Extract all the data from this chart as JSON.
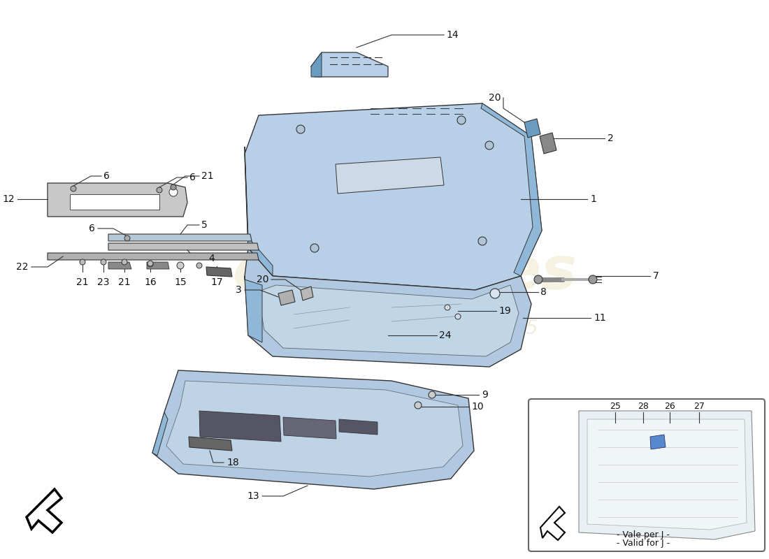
{
  "background_color": "#ffffff",
  "part_color_light": "#b8cfe8",
  "part_color_medium": "#8fb8d8",
  "part_color_dark": "#6a9cbf",
  "line_color": "#333333",
  "watermark_color1": "#d4c070",
  "watermark_color2": "#b0a050",
  "inset_note": [
    "- Vale per J -",
    "- Valid for J -"
  ]
}
